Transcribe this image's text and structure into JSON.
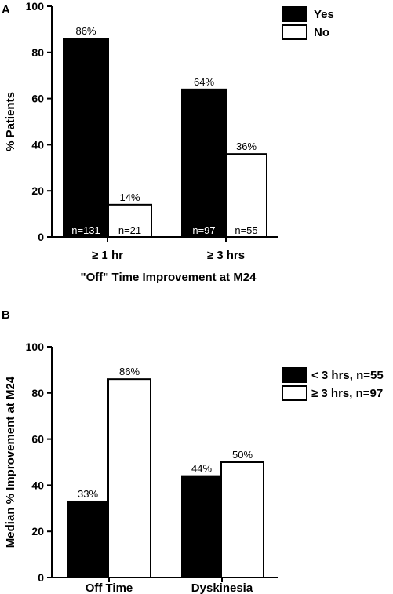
{
  "chart_data": [
    {
      "panel": "A",
      "type": "bar",
      "categories": [
        "≥ 1 hr",
        "≥ 3 hrs"
      ],
      "xlabel": "\"Off\" Time Improvement at M24",
      "ylabel": "% Patients",
      "ylim": [
        0,
        100
      ],
      "yticks": [
        0,
        20,
        40,
        60,
        80,
        100
      ],
      "legend_position": "top-right",
      "series": [
        {
          "name": "Yes",
          "color": "#000000",
          "values": [
            86,
            64
          ],
          "labels": [
            "86%",
            "64%"
          ],
          "n_labels": [
            "n=131",
            "n=97"
          ]
        },
        {
          "name": "No",
          "color": "#ffffff",
          "values": [
            14,
            36
          ],
          "labels": [
            "14%",
            "36%"
          ],
          "n_labels": [
            "n=21",
            "n=55"
          ]
        }
      ]
    },
    {
      "panel": "B",
      "type": "bar",
      "categories": [
        "Off Time",
        "Dyskinesia"
      ],
      "xlabel": "",
      "ylabel": "Median % Improvement at M24",
      "ylim": [
        0,
        100
      ],
      "yticks": [
        0,
        20,
        40,
        60,
        80,
        100
      ],
      "legend_position": "top-right",
      "series": [
        {
          "name": "< 3 hrs, n=55",
          "color": "#000000",
          "values": [
            33,
            44
          ],
          "labels": [
            "33%",
            "44%"
          ]
        },
        {
          "name": "≥ 3 hrs, n=97",
          "color": "#ffffff",
          "values": [
            86,
            50
          ],
          "labels": [
            "86%",
            "50%"
          ]
        }
      ]
    }
  ]
}
